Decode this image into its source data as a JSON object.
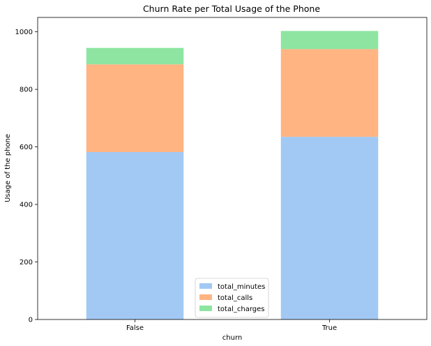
{
  "chart_data": {
    "type": "bar",
    "stacked": true,
    "title": "Churn Rate per Total Usage of the Phone",
    "xlabel": "churn",
    "ylabel": "Usage of the phone",
    "categories": [
      "False",
      "True"
    ],
    "ylim": [
      0,
      1050
    ],
    "yticks": [
      0,
      200,
      400,
      600,
      800,
      1000
    ],
    "series": [
      {
        "name": "total_minutes",
        "values": [
          582,
          635
        ],
        "color": "#a1c9f4"
      },
      {
        "name": "total_calls",
        "values": [
          305,
          305
        ],
        "color": "#ffb482"
      },
      {
        "name": "total_charges",
        "values": [
          57,
          63
        ],
        "color": "#8de5a1"
      }
    ],
    "legend_position": "bottom-center",
    "grid": false
  }
}
